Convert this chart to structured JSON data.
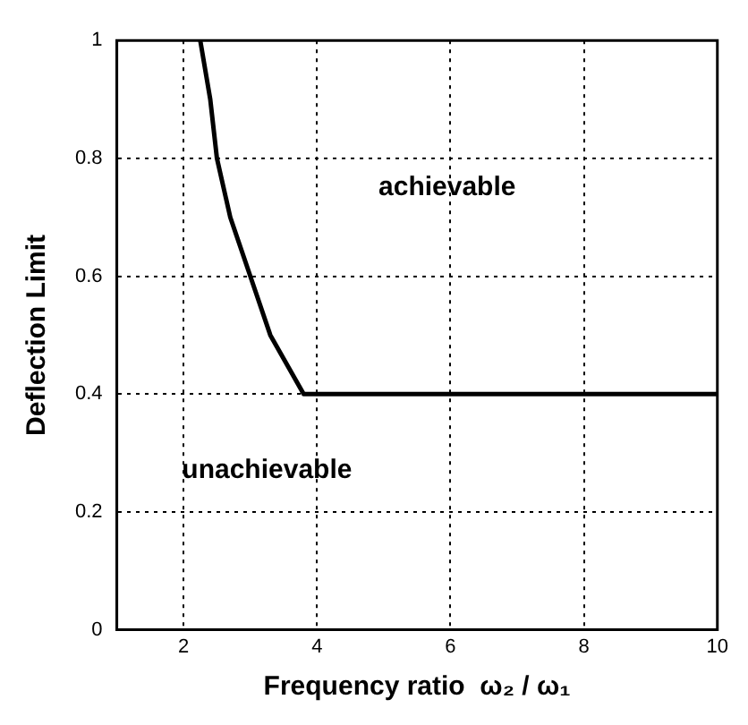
{
  "chart_data": {
    "type": "line",
    "xlabel": "Frequency ratio  ω₂ / ω₁",
    "ylabel": "Deflection Limit",
    "series": [
      {
        "color": "#000000",
        "x": [
          2.25,
          2.4,
          2.5,
          2.7,
          3.0,
          3.3,
          3.8,
          10
        ],
        "values": [
          1,
          0.9,
          0.8,
          0.7,
          0.6,
          0.5,
          0.4,
          0.4
        ]
      }
    ],
    "xlim": [
      1,
      10
    ],
    "xticks": [
      2,
      4,
      6,
      8,
      10
    ],
    "ylim": [
      0,
      1
    ],
    "yticks": [
      0,
      0.2,
      0.4,
      0.6,
      0.8,
      1
    ],
    "grid": true,
    "legend": false,
    "marker": "none",
    "line_style": "solid",
    "annotations": [
      "achievable",
      "unachievable"
    ]
  }
}
